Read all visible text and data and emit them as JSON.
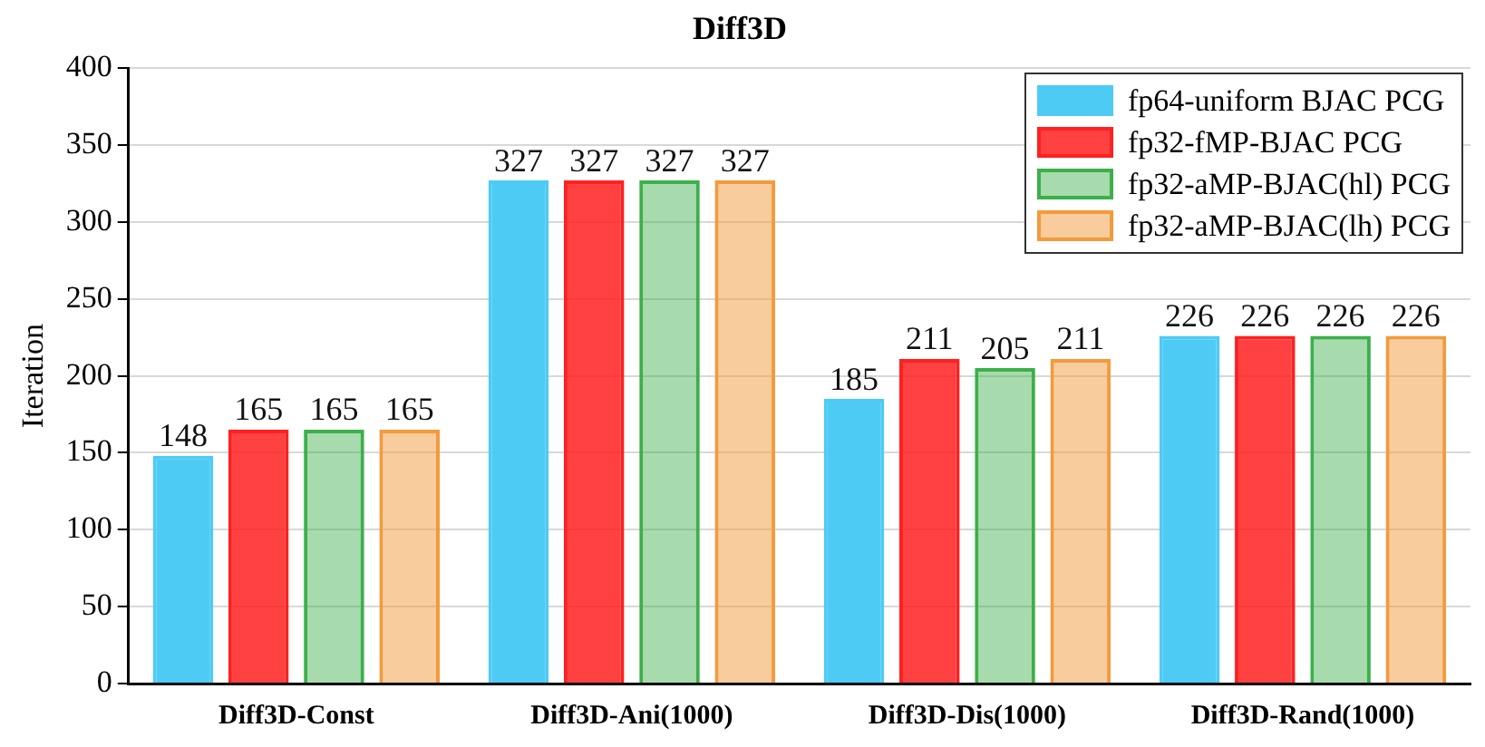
{
  "chart_data": {
    "type": "bar",
    "title": "Diff3D",
    "ylabel": "Iteration",
    "categories": [
      "Diff3D-Const",
      "Diff3D-Ani(1000)",
      "Diff3D-Dis(1000)",
      "Diff3D-Rand(1000)"
    ],
    "series": [
      {
        "name": "fp64-uniform BJAC PCG",
        "color": "#4dcbf5",
        "values": [
          148,
          327,
          185,
          226
        ]
      },
      {
        "name": "fp32-fMP-BJAC PCG",
        "color": "#ff2020",
        "values": [
          165,
          327,
          211,
          226
        ]
      },
      {
        "name": "fp32-aMP-BJAC(hl) PCG",
        "color": "#3cb04a",
        "values": [
          165,
          327,
          205,
          226
        ]
      },
      {
        "name": "fp32-aMP-BJAC(lh) PCG",
        "color": "#f39a3c",
        "values": [
          165,
          327,
          211,
          226
        ]
      }
    ],
    "ylim": [
      0,
      400
    ],
    "yticks": [
      0,
      50,
      100,
      150,
      200,
      250,
      300,
      350,
      400
    ],
    "grid": "y",
    "legend": "top right",
    "data_labels": true
  }
}
